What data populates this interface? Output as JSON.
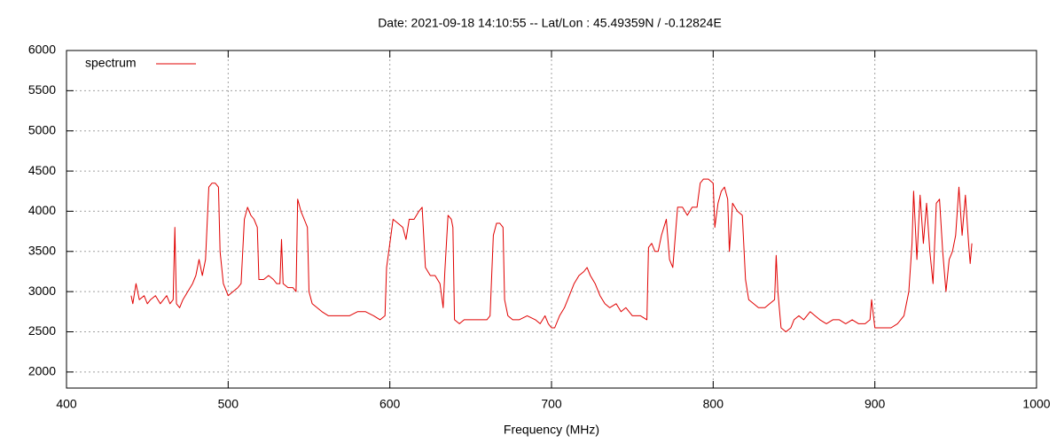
{
  "chart_data": {
    "type": "line",
    "title": "Date: 2021-09-18 14:10:55  --  Lat/Lon : 45.49359N / -0.12824E",
    "x_label": "Frequency (MHz)",
    "xlim": [
      400,
      1000
    ],
    "xticks": [
      400,
      500,
      600,
      700,
      800,
      900,
      1000
    ],
    "ylim": [
      1800,
      6000
    ],
    "yticks": [
      2000,
      2500,
      3000,
      3500,
      4000,
      4500,
      5000,
      5500,
      6000
    ],
    "grid": true,
    "legend": "top-left",
    "x": [
      440,
      441,
      443,
      445,
      448,
      450,
      452,
      455,
      458,
      460,
      462,
      464,
      466,
      467,
      468,
      470,
      472,
      475,
      478,
      480,
      482,
      484,
      486,
      488,
      490,
      492,
      494,
      495,
      497,
      500,
      503,
      506,
      508,
      510,
      512,
      514,
      516,
      518,
      519,
      522,
      525,
      528,
      530,
      532,
      533,
      534,
      537,
      540,
      542,
      543,
      545,
      548,
      549,
      550,
      552,
      555,
      558,
      562,
      566,
      570,
      575,
      580,
      585,
      590,
      594,
      597,
      598,
      600,
      602,
      605,
      608,
      610,
      612,
      615,
      618,
      620,
      622,
      625,
      628,
      631,
      633,
      634,
      636,
      638,
      639,
      640,
      643,
      646,
      650,
      655,
      660,
      662,
      664,
      666,
      668,
      670,
      671,
      673,
      676,
      680,
      685,
      690,
      693,
      696,
      698,
      700,
      702,
      705,
      708,
      711,
      714,
      717,
      720,
      722,
      724,
      727,
      730,
      733,
      736,
      740,
      743,
      746,
      750,
      755,
      759,
      760,
      762,
      764,
      766,
      768,
      771,
      773,
      775,
      778,
      781,
      784,
      787,
      790,
      792,
      794,
      797,
      800,
      801,
      803,
      805,
      807,
      809,
      810,
      812,
      815,
      818,
      820,
      822,
      825,
      828,
      832,
      835,
      838,
      839,
      840,
      842,
      845,
      848,
      850,
      853,
      856,
      860,
      863,
      866,
      870,
      874,
      878,
      882,
      886,
      890,
      894,
      897,
      898,
      900,
      905,
      910,
      914,
      918,
      921,
      923,
      924,
      926,
      928,
      930,
      932,
      934,
      936,
      938,
      940,
      942,
      944,
      946,
      948,
      950,
      952,
      954,
      956,
      958,
      959,
      960
    ],
    "series": [
      {
        "name": "spectrum",
        "color": "#e00000",
        "values": [
          2950,
          2850,
          3100,
          2900,
          2950,
          2850,
          2900,
          2950,
          2850,
          2900,
          2950,
          2850,
          2900,
          3800,
          2850,
          2800,
          2900,
          3000,
          3100,
          3200,
          3400,
          3200,
          3400,
          4300,
          4350,
          4350,
          4300,
          3500,
          3100,
          2950,
          3000,
          3050,
          3100,
          3900,
          4050,
          3950,
          3900,
          3800,
          3150,
          3150,
          3200,
          3150,
          3100,
          3100,
          3650,
          3100,
          3050,
          3050,
          3000,
          4150,
          4000,
          3850,
          3800,
          3000,
          2850,
          2800,
          2750,
          2700,
          2700,
          2700,
          2700,
          2750,
          2750,
          2700,
          2650,
          2700,
          3300,
          3600,
          3900,
          3850,
          3800,
          3650,
          3900,
          3900,
          4000,
          4050,
          3300,
          3200,
          3200,
          3100,
          2800,
          3250,
          3950,
          3900,
          3800,
          2650,
          2600,
          2650,
          2650,
          2650,
          2650,
          2700,
          3700,
          3850,
          3850,
          3800,
          2900,
          2700,
          2650,
          2650,
          2700,
          2650,
          2600,
          2700,
          2600,
          2550,
          2550,
          2700,
          2800,
          2950,
          3100,
          3200,
          3250,
          3300,
          3200,
          3100,
          2950,
          2850,
          2800,
          2850,
          2750,
          2800,
          2700,
          2700,
          2650,
          3550,
          3600,
          3500,
          3500,
          3700,
          3900,
          3400,
          3300,
          4050,
          4050,
          3950,
          4050,
          4050,
          4350,
          4400,
          4400,
          4350,
          3800,
          4100,
          4250,
          4300,
          4150,
          3500,
          4100,
          4000,
          3950,
          3150,
          2900,
          2850,
          2800,
          2800,
          2850,
          2900,
          3450,
          3000,
          2550,
          2500,
          2550,
          2650,
          2700,
          2650,
          2750,
          2700,
          2650,
          2600,
          2650,
          2650,
          2600,
          2650,
          2600,
          2600,
          2650,
          2900,
          2550,
          2550,
          2550,
          2600,
          2700,
          3000,
          3600,
          4250,
          3400,
          4200,
          3600,
          4100,
          3500,
          3100,
          4100,
          4150,
          3500,
          3000,
          3400,
          3500,
          3700,
          4300,
          3700,
          4200,
          3600,
          3350,
          3600
        ]
      }
    ]
  }
}
